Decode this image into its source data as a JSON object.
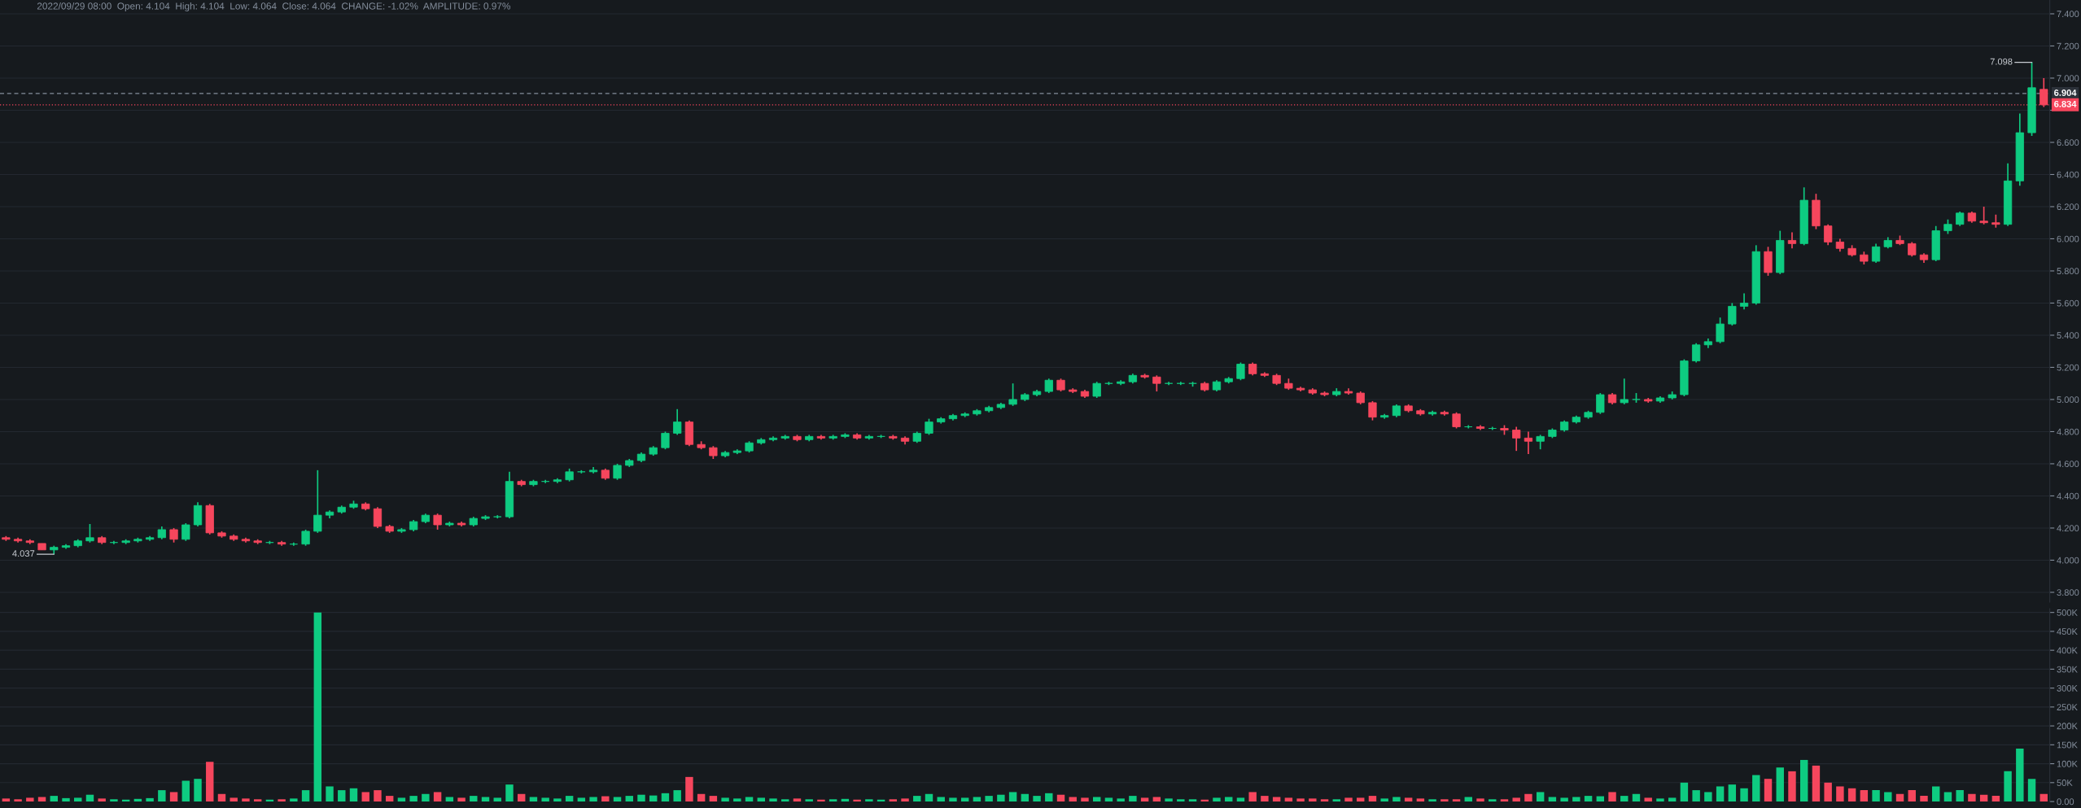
{
  "chart_data": [
    {
      "type": "candlestick",
      "title": "2022/09/29 08:00  Open: 4.104  High: 4.104  Low: 4.064  Close: 4.064  CHANGE: -1.02%  AMPLITUDE: 0.97%",
      "categories": [
        null,
        null,
        null,
        null,
        null,
        null,
        null,
        null,
        null,
        null,
        null,
        null,
        null,
        null,
        null,
        null,
        null,
        null,
        null,
        null,
        null,
        null,
        null,
        null,
        null,
        null,
        null,
        null,
        null,
        null,
        null,
        null,
        null,
        null,
        null,
        null,
        null,
        null,
        null,
        null,
        null,
        null,
        null,
        null,
        null,
        null,
        null,
        null,
        null,
        null,
        null,
        null,
        null,
        null,
        null,
        null,
        null,
        null,
        null,
        null,
        null,
        null,
        null,
        null,
        null,
        null,
        null,
        null,
        null,
        null,
        null,
        null,
        null,
        null,
        null,
        null,
        null,
        null,
        null,
        null,
        null,
        null,
        null,
        null,
        null,
        null,
        null,
        null,
        null,
        null,
        null,
        null,
        null,
        null,
        null,
        null,
        null,
        null,
        null,
        null,
        null,
        null,
        null,
        null,
        null,
        null,
        null,
        null,
        null,
        null,
        null,
        null,
        null,
        null,
        null,
        null,
        null,
        null,
        null,
        null,
        null,
        null,
        null,
        null,
        null,
        null,
        null,
        null,
        null,
        null,
        null,
        null,
        null,
        null,
        null,
        null,
        null,
        null,
        null,
        null,
        null,
        null,
        null,
        null,
        null,
        null,
        null,
        null,
        null,
        null,
        null,
        null,
        null,
        null,
        null,
        null,
        null,
        null,
        null,
        null,
        null,
        null,
        null,
        null,
        null,
        null,
        null,
        null,
        null,
        null,
        null
      ],
      "ohlc": [
        [
          4.14,
          4.15,
          4.12,
          4.13
        ],
        [
          4.13,
          4.14,
          4.11,
          4.12
        ],
        [
          4.12,
          4.13,
          4.1,
          4.11
        ],
        [
          4.104,
          4.104,
          4.064,
          4.064
        ],
        [
          4.064,
          4.09,
          4.037,
          4.08
        ],
        [
          4.08,
          4.1,
          4.07,
          4.09
        ],
        [
          4.09,
          4.13,
          4.08,
          4.12
        ],
        [
          4.12,
          4.225,
          4.11,
          4.14
        ],
        [
          4.14,
          4.15,
          4.1,
          4.11
        ],
        [
          4.11,
          4.12,
          4.1,
          4.11
        ],
        [
          4.11,
          4.13,
          4.1,
          4.12
        ],
        [
          4.12,
          4.14,
          4.11,
          4.13
        ],
        [
          4.13,
          4.15,
          4.12,
          4.14
        ],
        [
          4.14,
          4.21,
          4.13,
          4.19
        ],
        [
          4.19,
          4.2,
          4.11,
          4.13
        ],
        [
          4.13,
          4.23,
          4.12,
          4.22
        ],
        [
          4.22,
          4.36,
          4.21,
          4.34
        ],
        [
          4.34,
          4.35,
          4.16,
          4.17
        ],
        [
          4.17,
          4.18,
          4.14,
          4.15
        ],
        [
          4.15,
          4.16,
          4.12,
          4.13
        ],
        [
          4.13,
          4.14,
          4.11,
          4.12
        ],
        [
          4.12,
          4.13,
          4.1,
          4.11
        ],
        [
          4.11,
          4.12,
          4.1,
          4.11
        ],
        [
          4.11,
          4.12,
          4.09,
          4.1
        ],
        [
          4.1,
          4.11,
          4.09,
          4.1
        ],
        [
          4.1,
          4.19,
          4.09,
          4.18
        ],
        [
          4.18,
          4.56,
          4.17,
          4.28
        ],
        [
          4.28,
          4.31,
          4.26,
          4.3
        ],
        [
          4.3,
          4.34,
          4.29,
          4.33
        ],
        [
          4.33,
          4.37,
          4.32,
          4.35
        ],
        [
          4.35,
          4.36,
          4.31,
          4.32
        ],
        [
          4.32,
          4.33,
          4.2,
          4.21
        ],
        [
          4.21,
          4.22,
          4.17,
          4.18
        ],
        [
          4.18,
          4.2,
          4.17,
          4.19
        ],
        [
          4.19,
          4.25,
          4.18,
          4.24
        ],
        [
          4.24,
          4.29,
          4.23,
          4.28
        ],
        [
          4.28,
          4.29,
          4.19,
          4.22
        ],
        [
          4.22,
          4.24,
          4.21,
          4.23
        ],
        [
          4.23,
          4.24,
          4.21,
          4.22
        ],
        [
          4.22,
          4.27,
          4.21,
          4.26
        ],
        [
          4.26,
          4.28,
          4.25,
          4.27
        ],
        [
          4.27,
          4.28,
          4.26,
          4.27
        ],
        [
          4.27,
          4.55,
          4.26,
          4.49
        ],
        [
          4.49,
          4.5,
          4.46,
          4.47
        ],
        [
          4.47,
          4.5,
          4.46,
          4.49
        ],
        [
          4.49,
          4.5,
          4.48,
          4.49
        ],
        [
          4.49,
          4.51,
          4.48,
          4.5
        ],
        [
          4.5,
          4.57,
          4.49,
          4.55
        ],
        [
          4.55,
          4.56,
          4.54,
          4.55
        ],
        [
          4.55,
          4.58,
          4.54,
          4.56
        ],
        [
          4.56,
          4.57,
          4.5,
          4.51
        ],
        [
          4.51,
          4.6,
          4.5,
          4.59
        ],
        [
          4.59,
          4.63,
          4.58,
          4.62
        ],
        [
          4.62,
          4.67,
          4.61,
          4.66
        ],
        [
          4.66,
          4.71,
          4.65,
          4.7
        ],
        [
          4.7,
          4.8,
          4.69,
          4.79
        ],
        [
          4.79,
          4.94,
          4.78,
          4.86
        ],
        [
          4.86,
          4.87,
          4.71,
          4.72
        ],
        [
          4.72,
          4.74,
          4.69,
          4.7
        ],
        [
          4.7,
          4.71,
          4.63,
          4.65
        ],
        [
          4.65,
          4.68,
          4.64,
          4.67
        ],
        [
          4.67,
          4.69,
          4.66,
          4.68
        ],
        [
          4.68,
          4.74,
          4.67,
          4.73
        ],
        [
          4.73,
          4.76,
          4.72,
          4.75
        ],
        [
          4.75,
          4.77,
          4.74,
          4.76
        ],
        [
          4.76,
          4.78,
          4.75,
          4.77
        ],
        [
          4.77,
          4.78,
          4.74,
          4.75
        ],
        [
          4.75,
          4.78,
          4.74,
          4.77
        ],
        [
          4.77,
          4.78,
          4.75,
          4.76
        ],
        [
          4.76,
          4.78,
          4.75,
          4.77
        ],
        [
          4.77,
          4.79,
          4.76,
          4.78
        ],
        [
          4.78,
          4.79,
          4.75,
          4.76
        ],
        [
          4.76,
          4.78,
          4.75,
          4.77
        ],
        [
          4.77,
          4.78,
          4.76,
          4.77
        ],
        [
          4.77,
          4.78,
          4.75,
          4.76
        ],
        [
          4.76,
          4.77,
          4.72,
          4.74
        ],
        [
          4.74,
          4.8,
          4.73,
          4.79
        ],
        [
          4.79,
          4.88,
          4.78,
          4.86
        ],
        [
          4.86,
          4.89,
          4.85,
          4.88
        ],
        [
          4.88,
          4.91,
          4.87,
          4.9
        ],
        [
          4.9,
          4.92,
          4.89,
          4.91
        ],
        [
          4.91,
          4.94,
          4.9,
          4.93
        ],
        [
          4.93,
          4.96,
          4.92,
          4.95
        ],
        [
          4.95,
          4.98,
          4.94,
          4.97
        ],
        [
          4.97,
          5.1,
          4.96,
          5.0
        ],
        [
          5.0,
          5.04,
          4.99,
          5.03
        ],
        [
          5.03,
          5.06,
          5.02,
          5.05
        ],
        [
          5.05,
          5.13,
          5.04,
          5.12
        ],
        [
          5.12,
          5.13,
          5.05,
          5.06
        ],
        [
          5.06,
          5.07,
          5.04,
          5.05
        ],
        [
          5.05,
          5.06,
          5.01,
          5.02
        ],
        [
          5.02,
          5.11,
          5.01,
          5.1
        ],
        [
          5.1,
          5.11,
          5.09,
          5.1
        ],
        [
          5.1,
          5.12,
          5.09,
          5.11
        ],
        [
          5.11,
          5.16,
          5.1,
          5.15
        ],
        [
          5.15,
          5.16,
          5.13,
          5.14
        ],
        [
          5.14,
          5.15,
          5.05,
          5.1
        ],
        [
          5.1,
          5.11,
          5.09,
          5.1
        ],
        [
          5.1,
          5.11,
          5.09,
          5.1
        ],
        [
          5.1,
          5.11,
          5.08,
          5.1
        ],
        [
          5.1,
          5.11,
          5.05,
          5.06
        ],
        [
          5.06,
          5.12,
          5.05,
          5.11
        ],
        [
          5.11,
          5.14,
          5.1,
          5.13
        ],
        [
          5.13,
          5.23,
          5.12,
          5.22
        ],
        [
          5.22,
          5.23,
          5.15,
          5.16
        ],
        [
          5.16,
          5.17,
          5.14,
          5.15
        ],
        [
          5.15,
          5.16,
          5.09,
          5.1
        ],
        [
          5.1,
          5.13,
          5.06,
          5.07
        ],
        [
          5.07,
          5.08,
          5.05,
          5.06
        ],
        [
          5.06,
          5.07,
          5.03,
          5.04
        ],
        [
          5.04,
          5.05,
          5.02,
          5.03
        ],
        [
          5.03,
          5.07,
          5.02,
          5.05
        ],
        [
          5.05,
          5.07,
          5.03,
          5.04
        ],
        [
          5.04,
          5.05,
          4.97,
          4.98
        ],
        [
          4.98,
          4.99,
          4.87,
          4.89
        ],
        [
          4.89,
          4.91,
          4.88,
          4.9
        ],
        [
          4.9,
          4.97,
          4.89,
          4.96
        ],
        [
          4.96,
          4.97,
          4.92,
          4.93
        ],
        [
          4.93,
          4.94,
          4.9,
          4.91
        ],
        [
          4.91,
          4.93,
          4.9,
          4.92
        ],
        [
          4.92,
          4.93,
          4.9,
          4.91
        ],
        [
          4.91,
          4.92,
          4.82,
          4.83
        ],
        [
          4.83,
          4.84,
          4.82,
          4.83
        ],
        [
          4.83,
          4.84,
          4.81,
          4.82
        ],
        [
          4.82,
          4.83,
          4.81,
          4.82
        ],
        [
          4.82,
          4.84,
          4.78,
          4.81
        ],
        [
          4.81,
          4.83,
          4.68,
          4.76
        ],
        [
          4.76,
          4.8,
          4.66,
          4.74
        ],
        [
          4.74,
          4.78,
          4.69,
          4.77
        ],
        [
          4.77,
          4.82,
          4.76,
          4.81
        ],
        [
          4.81,
          4.87,
          4.8,
          4.86
        ],
        [
          4.86,
          4.9,
          4.85,
          4.89
        ],
        [
          4.89,
          4.93,
          4.88,
          4.92
        ],
        [
          4.92,
          5.04,
          4.91,
          5.03
        ],
        [
          5.03,
          5.04,
          4.97,
          4.98
        ],
        [
          4.98,
          5.13,
          4.97,
          5.0
        ],
        [
          5.0,
          5.04,
          4.98,
          5.0
        ],
        [
          5.0,
          5.01,
          4.98,
          4.99
        ],
        [
          4.99,
          5.02,
          4.98,
          5.01
        ],
        [
          5.01,
          5.05,
          5.0,
          5.03
        ],
        [
          5.03,
          5.25,
          5.02,
          5.24
        ],
        [
          5.24,
          5.35,
          5.23,
          5.34
        ],
        [
          5.34,
          5.38,
          5.32,
          5.36
        ],
        [
          5.36,
          5.51,
          5.35,
          5.47
        ],
        [
          5.47,
          5.6,
          5.46,
          5.58
        ],
        [
          5.58,
          5.66,
          5.56,
          5.6
        ],
        [
          5.6,
          5.96,
          5.59,
          5.92
        ],
        [
          5.92,
          5.95,
          5.77,
          5.79
        ],
        [
          5.79,
          6.05,
          5.78,
          5.99
        ],
        [
          5.99,
          6.04,
          5.94,
          5.97
        ],
        [
          5.97,
          6.32,
          5.96,
          6.24
        ],
        [
          6.24,
          6.28,
          6.06,
          6.08
        ],
        [
          6.08,
          6.09,
          5.96,
          5.98
        ],
        [
          5.98,
          6.0,
          5.92,
          5.94
        ],
        [
          5.94,
          5.96,
          5.89,
          5.9
        ],
        [
          5.9,
          5.92,
          5.84,
          5.86
        ],
        [
          5.86,
          5.97,
          5.85,
          5.95
        ],
        [
          5.95,
          6.01,
          5.94,
          5.99
        ],
        [
          5.99,
          6.02,
          5.96,
          5.97
        ],
        [
          5.97,
          5.98,
          5.89,
          5.9
        ],
        [
          5.9,
          5.91,
          5.85,
          5.87
        ],
        [
          5.87,
          6.08,
          5.86,
          6.05
        ],
        [
          6.05,
          6.12,
          6.03,
          6.09
        ],
        [
          6.09,
          6.17,
          6.08,
          6.16
        ],
        [
          6.16,
          6.17,
          6.1,
          6.11
        ],
        [
          6.11,
          6.2,
          6.09,
          6.1
        ],
        [
          6.1,
          6.15,
          6.07,
          6.09
        ],
        [
          6.09,
          6.47,
          6.08,
          6.36
        ],
        [
          6.36,
          6.78,
          6.33,
          6.66
        ],
        [
          6.66,
          7.098,
          6.64,
          6.94
        ],
        [
          6.93,
          7.0,
          6.82,
          6.834
        ]
      ],
      "colors": [
        "#f6465d",
        "#f6465d",
        "#f6465d",
        "#f6465d",
        "#0ecb81",
        "#0ecb81",
        "#0ecb81",
        "#0ecb81",
        "#f6465d",
        "#0ecb81",
        "#0ecb81",
        "#0ecb81",
        "#0ecb81",
        "#0ecb81",
        "#f6465d",
        "#0ecb81",
        "#0ecb81",
        "#f6465d",
        "#f6465d",
        "#f6465d",
        "#f6465d",
        "#f6465d",
        "#0ecb81",
        "#f6465d",
        "#0ecb81",
        "#0ecb81",
        "#0ecb81",
        "#0ecb81",
        "#0ecb81",
        "#0ecb81",
        "#f6465d",
        "#f6465d",
        "#f6465d",
        "#0ecb81",
        "#0ecb81",
        "#0ecb81",
        "#f6465d",
        "#0ecb81",
        "#f6465d",
        "#0ecb81",
        "#0ecb81",
        "#0ecb81",
        "#0ecb81",
        "#f6465d",
        "#0ecb81",
        "#0ecb81",
        "#0ecb81",
        "#0ecb81",
        "#0ecb81",
        "#0ecb81",
        "#f6465d",
        "#0ecb81",
        "#0ecb81",
        "#0ecb81",
        "#0ecb81",
        "#0ecb81",
        "#0ecb81",
        "#f6465d",
        "#f6465d",
        "#f6465d",
        "#0ecb81",
        "#0ecb81",
        "#0ecb81",
        "#0ecb81",
        "#0ecb81",
        "#0ecb81",
        "#f6465d",
        "#0ecb81",
        "#f6465d",
        "#0ecb81",
        "#0ecb81",
        "#f6465d",
        "#0ecb81",
        "#0ecb81",
        "#f6465d",
        "#f6465d",
        "#0ecb81",
        "#0ecb81",
        "#0ecb81",
        "#0ecb81",
        "#0ecb81",
        "#0ecb81",
        "#0ecb81",
        "#0ecb81",
        "#0ecb81",
        "#0ecb81",
        "#0ecb81",
        "#0ecb81",
        "#f6465d",
        "#f6465d",
        "#f6465d",
        "#0ecb81",
        "#0ecb81",
        "#0ecb81",
        "#0ecb81",
        "#f6465d",
        "#f6465d",
        "#0ecb81",
        "#0ecb81",
        "#0ecb81",
        "#f6465d",
        "#0ecb81",
        "#0ecb81",
        "#0ecb81",
        "#f6465d",
        "#f6465d",
        "#f6465d",
        "#f6465d",
        "#f6465d",
        "#f6465d",
        "#f6465d",
        "#0ecb81",
        "#f6465d",
        "#f6465d",
        "#f6465d",
        "#0ecb81",
        "#0ecb81",
        "#f6465d",
        "#f6465d",
        "#0ecb81",
        "#f6465d",
        "#f6465d",
        "#0ecb81",
        "#f6465d",
        "#0ecb81",
        "#f6465d",
        "#f6465d",
        "#f6465d",
        "#0ecb81",
        "#0ecb81",
        "#0ecb81",
        "#0ecb81",
        "#0ecb81",
        "#0ecb81",
        "#f6465d",
        "#0ecb81",
        "#0ecb81",
        "#f6465d",
        "#0ecb81",
        "#0ecb81",
        "#0ecb81",
        "#0ecb81",
        "#0ecb81",
        "#0ecb81",
        "#0ecb81",
        "#0ecb81",
        "#0ecb81",
        "#f6465d",
        "#0ecb81",
        "#f6465d",
        "#0ecb81",
        "#f6465d",
        "#f6465d",
        "#f6465d",
        "#f6465d",
        "#f6465d",
        "#0ecb81",
        "#0ecb81",
        "#f6465d",
        "#f6465d",
        "#f6465d",
        "#0ecb81",
        "#0ecb81",
        "#0ecb81",
        "#f6465d",
        "#f6465d",
        "#f6465d",
        "#0ecb81",
        "#0ecb81",
        "#0ecb81",
        "#f6465d"
      ],
      "ylim": [
        3.739,
        7.486
      ],
      "yticks": [
        {
          "value": 3.8,
          "label": "3.800"
        },
        {
          "value": 4.0,
          "label": "4.000"
        },
        {
          "value": 4.2,
          "label": "4.200"
        },
        {
          "value": 4.4,
          "label": "4.400"
        },
        {
          "value": 4.6,
          "label": "4.600"
        },
        {
          "value": 4.8,
          "label": "4.800"
        },
        {
          "value": 5.0,
          "label": "5.000"
        },
        {
          "value": 5.2,
          "label": "5.200"
        },
        {
          "value": 5.4,
          "label": "5.400"
        },
        {
          "value": 5.6,
          "label": "5.600"
        },
        {
          "value": 5.8,
          "label": "5.800"
        },
        {
          "value": 6.0,
          "label": "6.000"
        },
        {
          "value": 6.2,
          "label": "6.200"
        },
        {
          "value": 6.4,
          "label": "6.400"
        },
        {
          "value": 6.6,
          "label": "6.600"
        },
        {
          "value": 6.8,
          "label": null
        },
        {
          "value": 7.0,
          "label": "7.000"
        },
        {
          "value": 7.2,
          "label": "7.200"
        },
        {
          "value": 7.4,
          "label": "7.400"
        }
      ],
      "grid": "y",
      "tick_labels": "y",
      "ref_lines": [
        {
          "axis": "y",
          "value": 6.904,
          "label": "6.904",
          "color": "#848e9c",
          "line_style": "dashed"
        },
        {
          "axis": "y",
          "value": 6.834,
          "label": "6.834",
          "color": "#f6465d",
          "line_style": "dotted"
        }
      ],
      "annotations": [
        "4.037",
        "7.098"
      ]
    },
    {
      "type": "bar",
      "categories": [
        null,
        null,
        null,
        null,
        null,
        null,
        null,
        null,
        null,
        null,
        null,
        null,
        null,
        null,
        null,
        null,
        null,
        null,
        null,
        null,
        null,
        null,
        null,
        null,
        null,
        null,
        null,
        null,
        null,
        null,
        null,
        null,
        null,
        null,
        null,
        null,
        null,
        null,
        null,
        null,
        null,
        null,
        null,
        null,
        null,
        null,
        null,
        null,
        null,
        null,
        null,
        null,
        null,
        null,
        null,
        null,
        null,
        null,
        null,
        null,
        null,
        null,
        null,
        null,
        null,
        null,
        null,
        null,
        null,
        null,
        null,
        null,
        null,
        null,
        null,
        null,
        null,
        null,
        null,
        null,
        null,
        null,
        null,
        null,
        null,
        null,
        null,
        null,
        null,
        null,
        null,
        null,
        null,
        null,
        null,
        null,
        null,
        null,
        null,
        null,
        null,
        null,
        null,
        null,
        null,
        null,
        null,
        null,
        null,
        null,
        null,
        null,
        null,
        null,
        null,
        null,
        null,
        null,
        null,
        null,
        null,
        null,
        null,
        null,
        null,
        null,
        null,
        null,
        null,
        null,
        null,
        null,
        null,
        null,
        null,
        null,
        null,
        null,
        null,
        null,
        null,
        null,
        null,
        null,
        null,
        null,
        null,
        null,
        null,
        null,
        null,
        null,
        null,
        null,
        null,
        null,
        null,
        null,
        null,
        null,
        null,
        null,
        null,
        null,
        null,
        null,
        null,
        null,
        null,
        null,
        null
      ],
      "values": [
        8,
        6,
        10,
        12,
        15,
        9,
        10,
        18,
        8,
        6,
        5,
        7,
        9,
        30,
        25,
        55,
        60,
        105,
        20,
        10,
        8,
        6,
        5,
        6,
        8,
        30,
        500,
        40,
        30,
        35,
        25,
        30,
        15,
        10,
        15,
        20,
        25,
        12,
        10,
        15,
        12,
        10,
        45,
        20,
        12,
        10,
        8,
        15,
        10,
        12,
        14,
        12,
        15,
        18,
        16,
        22,
        30,
        65,
        20,
        15,
        10,
        8,
        12,
        10,
        8,
        6,
        8,
        6,
        5,
        6,
        7,
        5,
        6,
        5,
        6,
        8,
        15,
        20,
        12,
        10,
        10,
        12,
        15,
        18,
        25,
        20,
        15,
        22,
        18,
        12,
        10,
        12,
        10,
        8,
        15,
        10,
        12,
        8,
        6,
        6,
        5,
        10,
        12,
        10,
        25,
        15,
        12,
        10,
        8,
        8,
        6,
        6,
        10,
        10,
        15,
        8,
        12,
        10,
        8,
        6,
        6,
        6,
        12,
        8,
        6,
        6,
        10,
        20,
        25,
        12,
        10,
        12,
        15,
        14,
        25,
        15,
        20,
        10,
        8,
        10,
        50,
        30,
        25,
        40,
        45,
        35,
        70,
        60,
        90,
        80,
        110,
        95,
        50,
        40,
        35,
        30,
        30,
        25,
        20,
        30,
        15,
        40,
        25,
        30,
        20,
        18,
        15,
        80,
        140,
        60,
        20
      ],
      "colors": [
        "#f6465d",
        "#f6465d",
        "#f6465d",
        "#f6465d",
        "#0ecb81",
        "#0ecb81",
        "#0ecb81",
        "#0ecb81",
        "#f6465d",
        "#0ecb81",
        "#0ecb81",
        "#0ecb81",
        "#0ecb81",
        "#0ecb81",
        "#f6465d",
        "#0ecb81",
        "#0ecb81",
        "#f6465d",
        "#f6465d",
        "#f6465d",
        "#f6465d",
        "#f6465d",
        "#0ecb81",
        "#f6465d",
        "#0ecb81",
        "#0ecb81",
        "#0ecb81",
        "#0ecb81",
        "#0ecb81",
        "#0ecb81",
        "#f6465d",
        "#f6465d",
        "#f6465d",
        "#0ecb81",
        "#0ecb81",
        "#0ecb81",
        "#f6465d",
        "#0ecb81",
        "#f6465d",
        "#0ecb81",
        "#0ecb81",
        "#0ecb81",
        "#0ecb81",
        "#f6465d",
        "#0ecb81",
        "#0ecb81",
        "#0ecb81",
        "#0ecb81",
        "#0ecb81",
        "#0ecb81",
        "#f6465d",
        "#0ecb81",
        "#0ecb81",
        "#0ecb81",
        "#0ecb81",
        "#0ecb81",
        "#0ecb81",
        "#f6465d",
        "#f6465d",
        "#f6465d",
        "#0ecb81",
        "#0ecb81",
        "#0ecb81",
        "#0ecb81",
        "#0ecb81",
        "#0ecb81",
        "#f6465d",
        "#0ecb81",
        "#f6465d",
        "#0ecb81",
        "#0ecb81",
        "#f6465d",
        "#0ecb81",
        "#0ecb81",
        "#f6465d",
        "#f6465d",
        "#0ecb81",
        "#0ecb81",
        "#0ecb81",
        "#0ecb81",
        "#0ecb81",
        "#0ecb81",
        "#0ecb81",
        "#0ecb81",
        "#0ecb81",
        "#0ecb81",
        "#0ecb81",
        "#0ecb81",
        "#f6465d",
        "#f6465d",
        "#f6465d",
        "#0ecb81",
        "#0ecb81",
        "#0ecb81",
        "#0ecb81",
        "#f6465d",
        "#f6465d",
        "#0ecb81",
        "#0ecb81",
        "#0ecb81",
        "#f6465d",
        "#0ecb81",
        "#0ecb81",
        "#0ecb81",
        "#f6465d",
        "#f6465d",
        "#f6465d",
        "#f6465d",
        "#f6465d",
        "#f6465d",
        "#f6465d",
        "#0ecb81",
        "#f6465d",
        "#f6465d",
        "#f6465d",
        "#0ecb81",
        "#0ecb81",
        "#f6465d",
        "#f6465d",
        "#0ecb81",
        "#f6465d",
        "#f6465d",
        "#0ecb81",
        "#f6465d",
        "#0ecb81",
        "#f6465d",
        "#f6465d",
        "#f6465d",
        "#0ecb81",
        "#0ecb81",
        "#0ecb81",
        "#0ecb81",
        "#0ecb81",
        "#0ecb81",
        "#f6465d",
        "#0ecb81",
        "#0ecb81",
        "#f6465d",
        "#0ecb81",
        "#0ecb81",
        "#0ecb81",
        "#0ecb81",
        "#0ecb81",
        "#0ecb81",
        "#0ecb81",
        "#0ecb81",
        "#0ecb81",
        "#f6465d",
        "#0ecb81",
        "#f6465d",
        "#0ecb81",
        "#f6465d",
        "#f6465d",
        "#f6465d",
        "#f6465d",
        "#f6465d",
        "#0ecb81",
        "#0ecb81",
        "#f6465d",
        "#f6465d",
        "#f6465d",
        "#0ecb81",
        "#0ecb81",
        "#0ecb81",
        "#f6465d",
        "#f6465d",
        "#f6465d",
        "#0ecb81",
        "#0ecb81",
        "#0ecb81",
        "#f6465d"
      ],
      "ylim": [
        0,
        510
      ],
      "yticks": [
        {
          "value": 0,
          "label": "0.00"
        },
        {
          "value": 50,
          "label": "50K"
        },
        {
          "value": 100,
          "label": "100K"
        },
        {
          "value": 150,
          "label": "150K"
        },
        {
          "value": 200,
          "label": "200K"
        },
        {
          "value": 250,
          "label": "250K"
        },
        {
          "value": 300,
          "label": "300K"
        },
        {
          "value": 350,
          "label": "350K"
        },
        {
          "value": 400,
          "label": "400K"
        },
        {
          "value": 450,
          "label": "450K"
        },
        {
          "value": 500,
          "label": "500K"
        }
      ],
      "grid": "y",
      "tick_labels": "y"
    }
  ]
}
